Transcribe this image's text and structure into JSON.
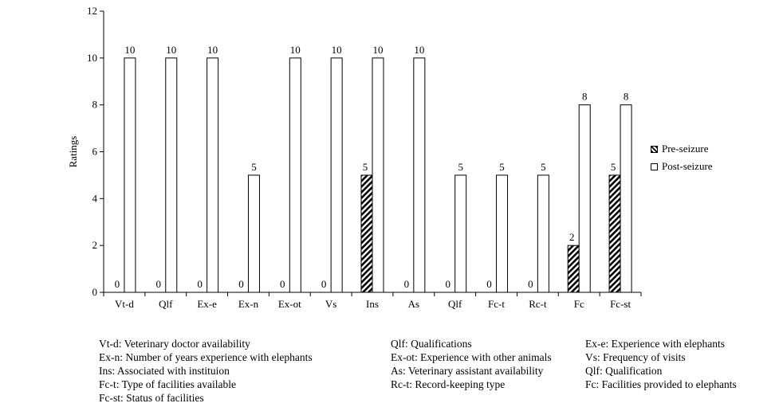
{
  "chart_data": {
    "type": "bar",
    "ylabel": "Ratings",
    "xlabel": "",
    "ylim": [
      0,
      12
    ],
    "yticks": [
      0,
      2,
      4,
      6,
      8,
      10,
      12
    ],
    "categories": [
      "Vt-d",
      "Qlf",
      "Ex-e",
      "Ex-n",
      "Ex-ot",
      "Vs",
      "Ins",
      "As",
      "Qlf",
      "Fc-t",
      "Rc-t",
      "Fc",
      "Fc-st"
    ],
    "series": [
      {
        "name": "Pre-seizure",
        "values": [
          0,
          0,
          0,
          0,
          0,
          0,
          5,
          0,
          0,
          0,
          0,
          2,
          5
        ],
        "fill": "hatch"
      },
      {
        "name": "Post-seizure",
        "values": [
          10,
          10,
          10,
          5,
          10,
          10,
          10,
          10,
          5,
          5,
          5,
          8,
          8
        ],
        "fill": "#ffffff"
      }
    ],
    "legend_position": "right",
    "grid": false
  },
  "notes": [
    [
      "Vt-d: Veterinary doctor availability",
      "Ex-n: Number of years experience with elephants",
      "Ins: Associated with instituion",
      "Fc-t: Type of facilities available",
      "Fc-st: Status of facilities"
    ],
    [
      "Qlf: Qualifications",
      "Ex-ot: Experience with other animals",
      "As: Veterinary assistant availability",
      "Rc-t: Record-keeping type"
    ],
    [
      "Ex-e: Experience with elephants",
      "Vs: Frequency of visits",
      "Qlf: Qualification",
      "Fc: Facilities provided to elephants"
    ]
  ]
}
